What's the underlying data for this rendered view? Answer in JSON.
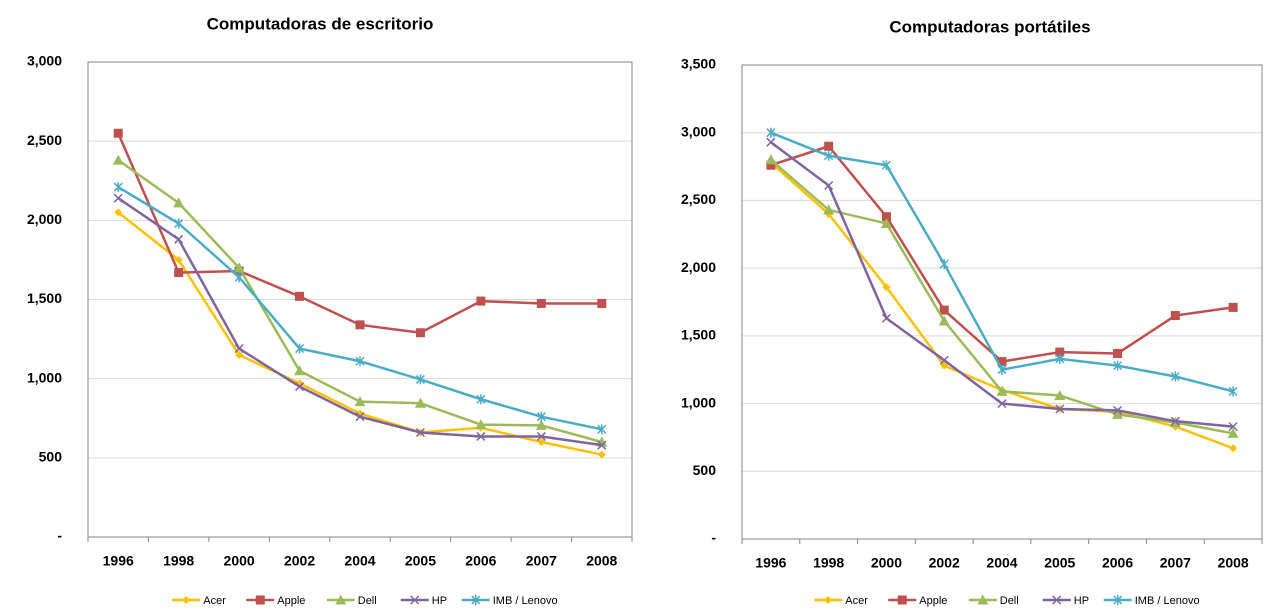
{
  "chart_data": [
    {
      "type": "line",
      "title": "Computadoras de escritorio",
      "categories": [
        "1996",
        "1998",
        "2000",
        "2002",
        "2004",
        "2005",
        "2006",
        "2007",
        "2008"
      ],
      "ylim": [
        0,
        3000
      ],
      "yticks": [
        {
          "value": 0,
          "label": "-"
        },
        500,
        {
          "value": 1000,
          "label": "1,000"
        },
        {
          "value": 1500,
          "label": "1,500"
        },
        {
          "value": 2000,
          "label": "2,000"
        },
        {
          "value": 2500,
          "label": "2,500"
        },
        {
          "value": 3000,
          "label": "3,000"
        }
      ],
      "grid": true,
      "legend": "bottom",
      "series": [
        {
          "name": "Acer",
          "color": "#ffc000",
          "marker": "diamond",
          "values": [
            2050,
            1750,
            1150,
            970,
            780,
            660,
            690,
            600,
            520
          ]
        },
        {
          "name": "Apple",
          "color": "#c0504d",
          "marker": "square",
          "values": [
            2550,
            1670,
            1680,
            1520,
            1340,
            1290,
            1490,
            1475,
            1475
          ]
        },
        {
          "name": "Dell",
          "color": "#9bbb59",
          "marker": "triangle",
          "values": [
            2380,
            2110,
            1700,
            1050,
            855,
            845,
            710,
            705,
            600
          ]
        },
        {
          "name": "HP",
          "color": "#8064a2",
          "marker": "x",
          "values": [
            2140,
            1880,
            1190,
            950,
            760,
            660,
            635,
            635,
            580
          ]
        },
        {
          "name": "IMB / Lenovo",
          "color": "#4bacc6",
          "marker": "star",
          "values": [
            2210,
            1980,
            1640,
            1190,
            1110,
            995,
            870,
            760,
            680
          ]
        }
      ]
    },
    {
      "type": "line",
      "title": "Computadoras portátiles",
      "categories": [
        "1996",
        "1998",
        "2000",
        "2002",
        "2004",
        "2005",
        "2006",
        "2007",
        "2008"
      ],
      "ylim": [
        0,
        3500
      ],
      "yticks": [
        {
          "value": 0,
          "label": "-"
        },
        500,
        {
          "value": 1000,
          "label": "1,000"
        },
        {
          "value": 1500,
          "label": "1,500"
        },
        {
          "value": 2000,
          "label": "2,000"
        },
        {
          "value": 2500,
          "label": "2,500"
        },
        {
          "value": 3000,
          "label": "3,000"
        },
        {
          "value": 3500,
          "label": "3,500"
        }
      ],
      "grid": true,
      "legend": "bottom",
      "series": [
        {
          "name": "Acer",
          "color": "#ffc000",
          "marker": "diamond",
          "values": [
            2780,
            2400,
            1860,
            1280,
            1100,
            960,
            940,
            830,
            670
          ]
        },
        {
          "name": "Apple",
          "color": "#c0504d",
          "marker": "square",
          "values": [
            2760,
            2900,
            2380,
            1690,
            1310,
            1380,
            1370,
            1650,
            1710
          ]
        },
        {
          "name": "Dell",
          "color": "#9bbb59",
          "marker": "triangle",
          "values": [
            2800,
            2430,
            2330,
            1610,
            1090,
            1060,
            920,
            860,
            780
          ]
        },
        {
          "name": "HP",
          "color": "#8064a2",
          "marker": "x",
          "values": [
            2930,
            2610,
            1630,
            1320,
            1000,
            960,
            950,
            870,
            830
          ]
        },
        {
          "name": "IMB / Lenovo",
          "color": "#4bacc6",
          "marker": "star",
          "values": [
            3000,
            2830,
            2760,
            2030,
            1250,
            1330,
            1280,
            1200,
            1090
          ]
        }
      ]
    }
  ]
}
